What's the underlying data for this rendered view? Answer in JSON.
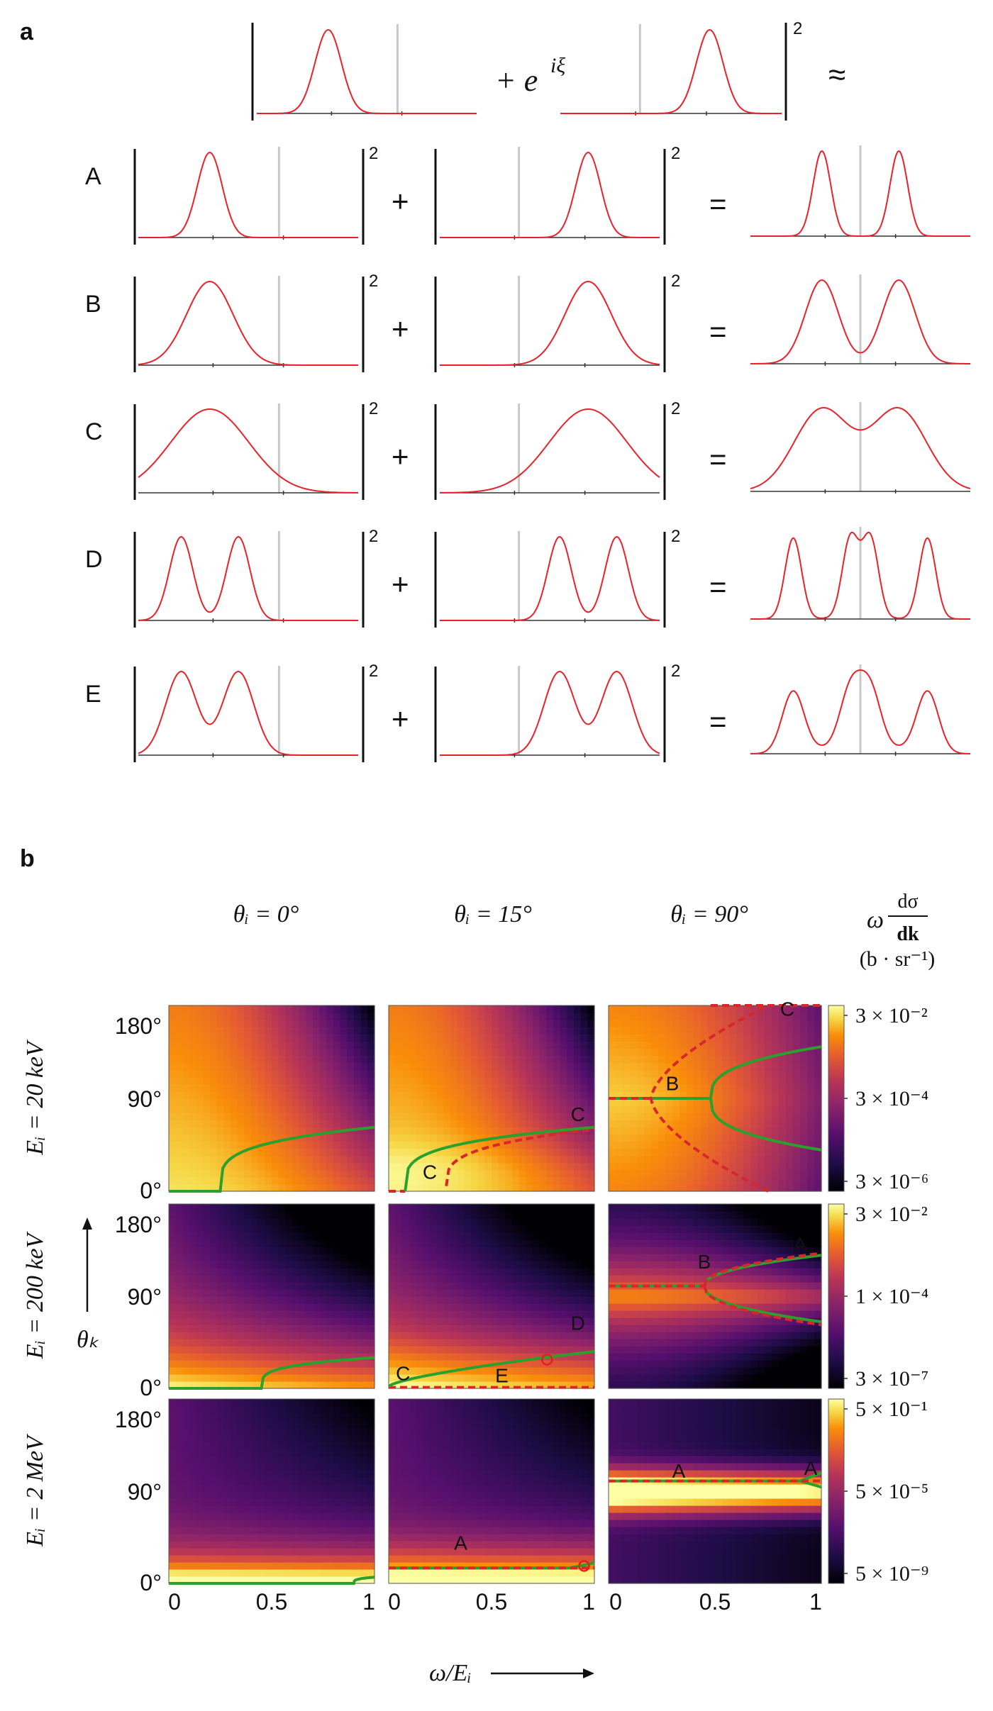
{
  "panel_a": {
    "label": "a",
    "header": {
      "phase_term": "+ e",
      "phase_exp": "iξ",
      "power": "2",
      "approx": "≈"
    },
    "plus": "+",
    "equals": "=",
    "power": "2",
    "rows": [
      {
        "label": "A",
        "left": {
          "c": [
            0.0
          ],
          "w": 0.16,
          "a": [
            1
          ]
        },
        "right": {
          "c": [
            0.0
          ],
          "w": 0.16,
          "a": [
            1
          ]
        },
        "sum": "A"
      },
      {
        "label": "B",
        "left": {
          "c": [
            0.0
          ],
          "w": 0.3,
          "a": [
            1
          ]
        },
        "right": {
          "c": [
            0.0
          ],
          "w": 0.3,
          "a": [
            1
          ]
        },
        "sum": "B"
      },
      {
        "label": "C",
        "left": {
          "c": [
            0.0
          ],
          "w": 0.5,
          "a": [
            1
          ]
        },
        "right": {
          "c": [
            0.0
          ],
          "w": 0.5,
          "a": [
            1
          ]
        },
        "sum": "C"
      },
      {
        "label": "D",
        "left": {
          "c": [
            -0.26,
            0.26
          ],
          "w": 0.15,
          "a": [
            1,
            1
          ]
        },
        "right": {
          "c": [
            -0.26,
            0.26
          ],
          "w": 0.15,
          "a": [
            1,
            1
          ]
        },
        "sum": "D"
      },
      {
        "label": "E",
        "left": {
          "c": [
            -0.26,
            0.26
          ],
          "w": 0.2,
          "a": [
            1,
            1
          ]
        },
        "right": {
          "c": [
            -0.26,
            0.26
          ],
          "w": 0.2,
          "a": [
            1,
            1
          ]
        },
        "sum": "E"
      }
    ]
  },
  "panel_b": {
    "label": "b",
    "column_titles": [
      "θᵢ = 0°",
      "θᵢ = 15°",
      "θᵢ = 90°"
    ],
    "colorbar_title": {
      "omega": "ω",
      "num": "dσ",
      "den": "dk",
      "unit": "(b · sr⁻¹)"
    },
    "row_titles": [
      "Eᵢ = 20 keV",
      "Eᵢ = 200 keV",
      "Eᵢ = 2 MeV"
    ],
    "y_ticks": [
      "0°",
      "90°",
      "180°"
    ],
    "x_ticks": [
      "0",
      "0.5",
      "1"
    ],
    "y_axis_label": "θₖ",
    "x_axis_label": "ω/Eᵢ",
    "colorbars": [
      [
        "3 × 10⁻²",
        "3 × 10⁻⁴",
        "3 × 10⁻⁶"
      ],
      [
        "3 × 10⁻²",
        "1 × 10⁻⁴",
        "3 × 10⁻⁷"
      ],
      [
        "5 × 10⁻¹",
        "5 × 10⁻⁵",
        "5 × 10⁻⁹"
      ]
    ],
    "panel_annotations": [
      [
        [],
        [
          {
            "t": "C",
            "x": 0.92,
            "y": 68
          },
          {
            "t": "C",
            "x": 0.2,
            "y": 12
          }
        ],
        [
          {
            "t": "B",
            "x": 0.3,
            "y": 98
          },
          {
            "t": "C",
            "x": 0.84,
            "y": 170
          }
        ]
      ],
      [
        [],
        [
          {
            "t": "D",
            "x": 0.92,
            "y": 57
          },
          {
            "t": "C",
            "x": 0.07,
            "y": 8
          },
          {
            "t": "E",
            "x": 0.55,
            "y": 6
          }
        ],
        [
          {
            "t": "B",
            "x": 0.45,
            "y": 117
          },
          {
            "t": "A",
            "x": 0.9,
            "y": 134
          }
        ]
      ],
      [
        [],
        [
          {
            "t": "A",
            "x": 0.35,
            "y": 33
          }
        ],
        [
          {
            "t": "A",
            "x": 0.33,
            "y": 103
          },
          {
            "t": "A",
            "x": 0.95,
            "y": 106
          }
        ]
      ]
    ]
  },
  "colors": {
    "curve": "#e8222a",
    "green": "#2ca02c",
    "dashed": "#d6282a",
    "marker": "#e02020",
    "center": "#c8c8c8"
  },
  "chart_data": [
    {
      "type": "line",
      "title": "",
      "description_rows": [
        "A",
        "B",
        "C",
        "D",
        "E"
      ],
      "series": [
        {
          "name": "A",
          "values": [
            1
          ]
        },
        {
          "name": "B",
          "values": [
            1
          ]
        },
        {
          "name": "C",
          "values": [
            1
          ]
        },
        {
          "name": "D",
          "values": [
            1,
            1
          ]
        },
        {
          "name": "E",
          "values": [
            1,
            1
          ]
        }
      ]
    },
    {
      "type": "heatmap",
      "xlabel": "ω/Eᵢ",
      "ylabel": "θₖ",
      "xlim": [
        0,
        1
      ],
      "ylim": [
        0,
        180
      ],
      "x_ticks": [
        0,
        0.5,
        1
      ],
      "y_ticks": [
        0,
        90,
        180
      ],
      "rows": [
        "Eᵢ = 20 keV",
        "Eᵢ = 200 keV",
        "Eᵢ = 2 MeV"
      ],
      "columns": [
        "θᵢ = 0°",
        "θᵢ = 15°",
        "θᵢ = 90°"
      ],
      "colorbar_ranges": [
        [
          3e-06,
          0.03
        ],
        [
          3e-07,
          0.03
        ],
        [
          5e-09,
          0.5
        ]
      ]
    }
  ]
}
